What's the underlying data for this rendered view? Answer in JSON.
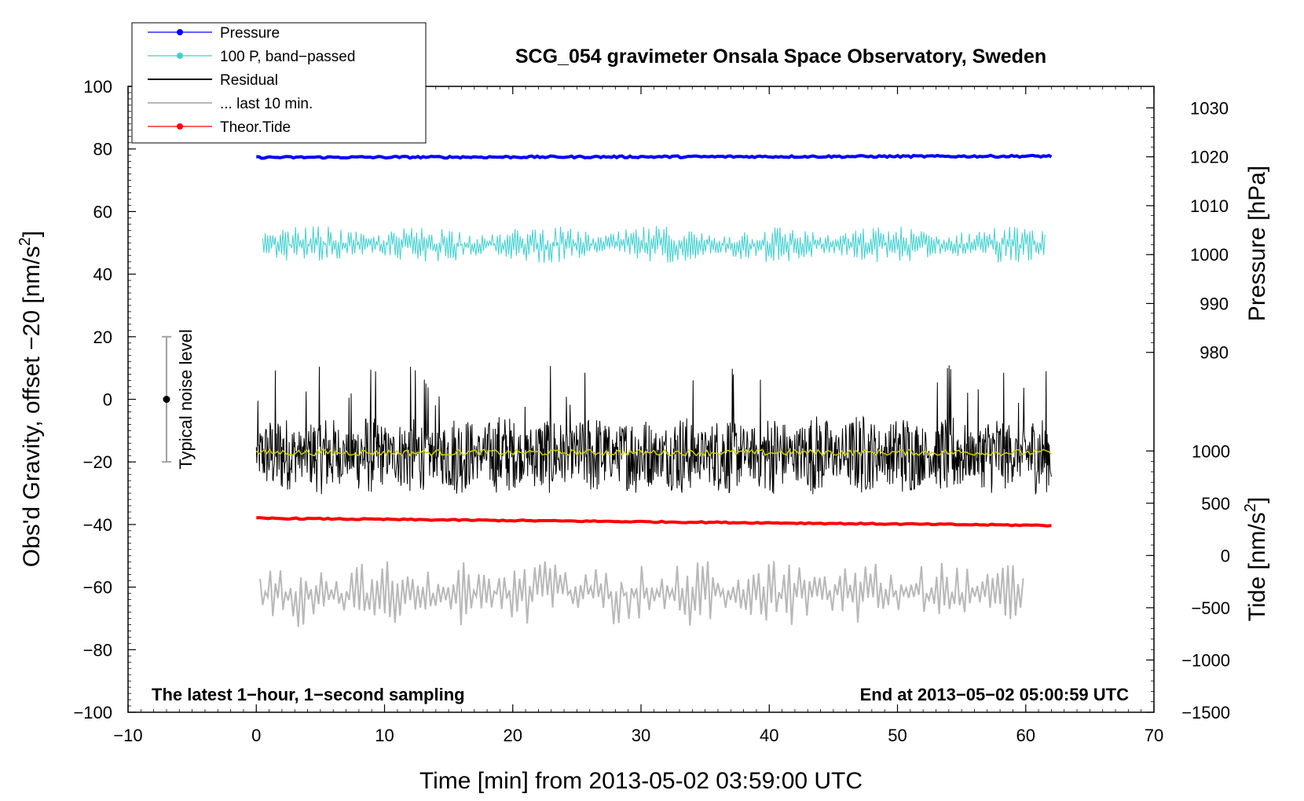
{
  "chart_data": {
    "type": "line",
    "title": "SCG_054 gravimeter Onsala Space Observatory, Sweden",
    "xlabel": "Time [min] from 2013-05-02 03:59:00 UTC",
    "ylabel_left": "Obs'd Gravity, offset −20 [nm/s",
    "ylabel_left_sup": "2",
    "ylabel_left_end": "]",
    "ylabel_right_top": "Pressure [hPa]",
    "ylabel_right_bottom": "Tide [nm/s",
    "ylabel_right_bottom_sup": "2",
    "ylabel_right_bottom_end": "]",
    "xlim": [
      -10,
      70
    ],
    "ylim_left": [
      -100,
      100
    ],
    "x_ticks": [
      -10,
      0,
      10,
      20,
      30,
      40,
      50,
      60,
      70
    ],
    "x_tick_labels": [
      "−10",
      "0",
      "10",
      "20",
      "30",
      "40",
      "50",
      "60",
      "70"
    ],
    "y_ticks_left": [
      -100,
      -80,
      -60,
      -40,
      -20,
      0,
      20,
      40,
      60,
      80,
      100
    ],
    "y_tick_labels_left": [
      "−100",
      "−80",
      "−60",
      "−40",
      "−20",
      "0",
      "20",
      "40",
      "60",
      "80",
      "100"
    ],
    "pressure_ticks": [
      980,
      990,
      1000,
      1010,
      1020,
      1030
    ],
    "pressure_tick_labels": [
      "980",
      "990",
      "1000",
      "1010",
      "1020",
      "1030"
    ],
    "pressure_axis_map": {
      "value_a": 1020,
      "gravity_a": 77.5,
      "value_b": 980,
      "gravity_b": 15
    },
    "tide_ticks": [
      -1500,
      -1000,
      -500,
      0,
      500,
      1000
    ],
    "tide_tick_labels": [
      "−1500",
      "−1000",
      "−500",
      "0",
      "500",
      "1000"
    ],
    "tide_axis_map": {
      "value_a": 1000,
      "gravity_a": -16.5,
      "value_b": -1500,
      "gravity_b": -100
    },
    "series": [
      {
        "name": "Pressure",
        "color": "#0000ff",
        "x_range": [
          0,
          62
        ],
        "level": 77.3,
        "end_level": 77.7,
        "noise": 0.3
      },
      {
        "name": "100 P, band-passed",
        "color": "#40d0d0",
        "x_range": [
          0.5,
          61.5
        ],
        "level": 49.5,
        "noise": 5.5
      },
      {
        "name": "Residual",
        "color": "#000000",
        "x_range": [
          0,
          62
        ],
        "level": -17.5,
        "noise": 13.0
      },
      {
        "name": "Residual mean",
        "color": "#d0d000",
        "x_range": [
          0,
          62
        ],
        "level": -17.0,
        "noise": 1.0
      },
      {
        "name": "... last 10 min.",
        "color": "#b8b8b8",
        "x_range": [
          0.3,
          59.8
        ],
        "level": -62,
        "noise": 10.0
      },
      {
        "name": "Theor.Tide",
        "color": "#ff0000",
        "x_range": [
          0,
          62
        ],
        "level": -38.0,
        "end_level": -40.3,
        "noise": 0.2
      }
    ],
    "legend": [
      {
        "label": "Pressure",
        "color": "#0000ff",
        "marker": true
      },
      {
        "label": "100 P, band−passed",
        "color": "#40d0d0",
        "marker": true
      },
      {
        "label": "Residual",
        "color": "#000000",
        "marker": false
      },
      {
        "label": "... last 10 min.",
        "color": "#b8b8b8",
        "marker": false
      },
      {
        "label": "Theor.Tide",
        "color": "#ff0000",
        "marker": true
      }
    ],
    "legend_position": "top-left",
    "noise_bar": {
      "label": "Typical noise level",
      "x": -7,
      "y_low": -20,
      "y_high": 20,
      "center": 0
    },
    "annotations": {
      "bottom_left": "The latest 1−hour, 1−second sampling",
      "bottom_right": "End at 2013−05−02 05:00:59 UTC"
    }
  }
}
